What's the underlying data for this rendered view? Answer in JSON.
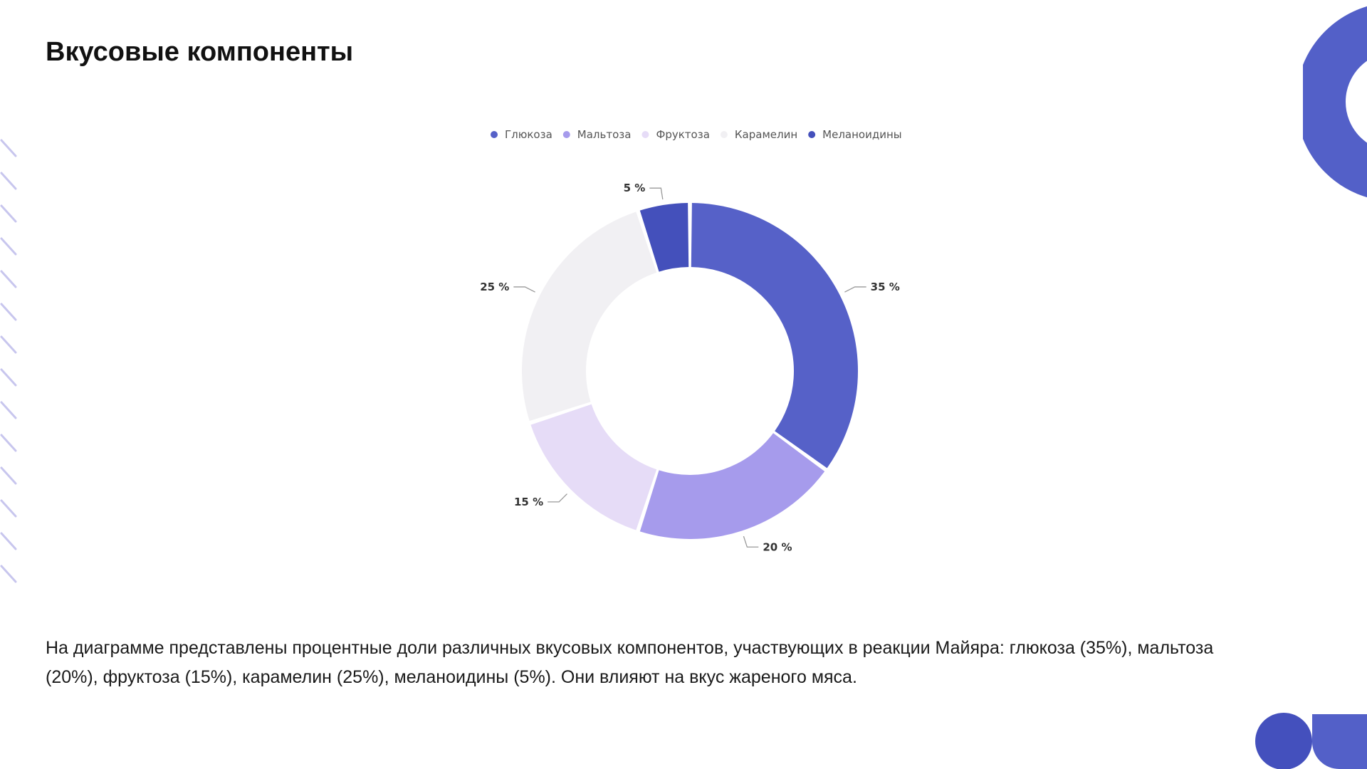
{
  "slide": {
    "title": "Вкусовые компоненты",
    "caption": "На диаграмме представлены процентные доли различных вкусовых компонентов, участвующих в реакции Майяра: глюкоза (35%), мальтоза (20%), фруктоза (15%), карамелин (25%), меланоидины (5%). Они влияют на вкус жареного мяса."
  },
  "colors": {
    "accent": "#5360c8",
    "accent_dark": "#4450bd",
    "stripe": "#c8c6ee"
  },
  "chart_data": {
    "type": "pie",
    "variant": "donut",
    "legend_position": "top",
    "categories": [
      "Глюкоза",
      "Мальтоза",
      "Фруктоза",
      "Карамелин",
      "Меланоидины"
    ],
    "values": [
      35,
      20,
      15,
      25,
      5
    ],
    "labels": [
      "35 %",
      "20 %",
      "15 %",
      "25 %",
      "5 %"
    ],
    "colors": [
      "#5661c8",
      "#a69bec",
      "#e6dcf7",
      "#f1f0f3",
      "#4450bb"
    ]
  }
}
